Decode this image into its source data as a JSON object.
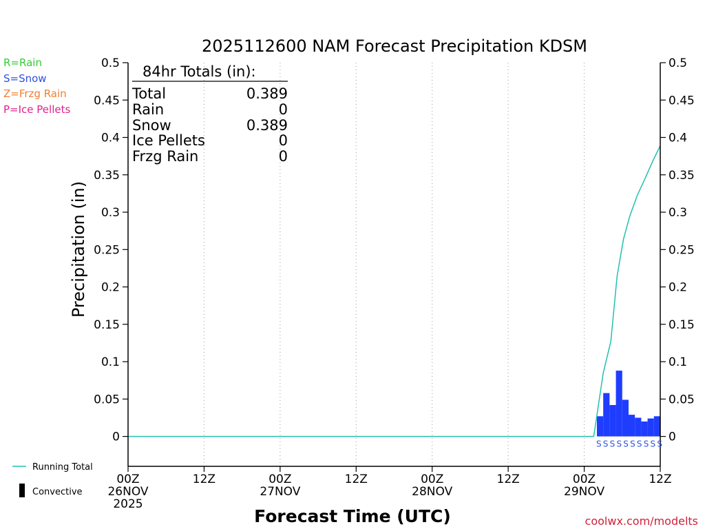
{
  "chart_data": {
    "type": "bar",
    "title": "2025112600 NAM Forecast Precipitation KDSM",
    "xlabel": "Forecast Time (UTC)",
    "ylabel": "Precipitation (in)",
    "x_unit": "forecast hour",
    "xlim": [
      0,
      84
    ],
    "ylim": [
      -0.04,
      0.5
    ],
    "yticks": [
      0,
      0.05,
      0.1,
      0.15,
      0.2,
      0.25,
      0.3,
      0.35,
      0.4,
      0.45,
      0.5
    ],
    "ytick_labels": [
      "0",
      "0.05",
      "0.1",
      "0.15",
      "0.2",
      "0.25",
      "0.3",
      "0.35",
      "0.4",
      "0.45",
      "0.5"
    ],
    "xticks": [
      0,
      12,
      24,
      36,
      48,
      60,
      72,
      84
    ],
    "xtick_labels": [
      {
        "line1": "00Z",
        "line2": "26NOV",
        "line3": "2025"
      },
      {
        "line1": "12Z",
        "line2": "",
        "line3": ""
      },
      {
        "line1": "00Z",
        "line2": "27NOV",
        "line3": ""
      },
      {
        "line1": "12Z",
        "line2": "",
        "line3": ""
      },
      {
        "line1": "00Z",
        "line2": "28NOV",
        "line3": ""
      },
      {
        "line1": "12Z",
        "line2": "",
        "line3": ""
      },
      {
        "line1": "00Z",
        "line2": "29NOV",
        "line3": ""
      },
      {
        "line1": "12Z",
        "line2": "",
        "line3": ""
      }
    ],
    "grid": "vertical dotted",
    "series": [
      {
        "name": "Snow",
        "type": "bar",
        "color": "#1f3dff",
        "bars": [
          {
            "x0": 74,
            "x1": 75,
            "value": 0.027
          },
          {
            "x0": 75,
            "x1": 76,
            "value": 0.058
          },
          {
            "x0": 76,
            "x1": 77,
            "value": 0.042
          },
          {
            "x0": 77,
            "x1": 78,
            "value": 0.088
          },
          {
            "x0": 78,
            "x1": 79,
            "value": 0.049
          },
          {
            "x0": 79,
            "x1": 80,
            "value": 0.029
          },
          {
            "x0": 80,
            "x1": 81,
            "value": 0.025
          },
          {
            "x0": 81,
            "x1": 82,
            "value": 0.02
          },
          {
            "x0": 82,
            "x1": 83,
            "value": 0.024
          },
          {
            "x0": 83,
            "x1": 84,
            "value": 0.027
          }
        ]
      },
      {
        "name": "Running Total",
        "type": "line",
        "color": "#20c0b0",
        "points": [
          [
            0,
            0
          ],
          [
            73.5,
            0
          ],
          [
            75,
            0.085
          ],
          [
            76.2,
            0.127
          ],
          [
            77.2,
            0.215
          ],
          [
            78.2,
            0.264
          ],
          [
            79.2,
            0.295
          ],
          [
            80.4,
            0.323
          ],
          [
            81.6,
            0.345
          ],
          [
            82.8,
            0.368
          ],
          [
            84,
            0.389
          ]
        ]
      }
    ],
    "precip_type_marks": {
      "text": "SSSSSSSSSS",
      "color": "#3050e0",
      "x_start": 74,
      "x_end": 84
    },
    "legend_types": [
      {
        "label": "R=Rain",
        "color": "#33cc33"
      },
      {
        "label": "S=Snow",
        "color": "#3050e0"
      },
      {
        "label": "Z=Frzg Rain",
        "color": "#f08030"
      },
      {
        "label": "P=Ice Pellets",
        "color": "#e0208a"
      }
    ],
    "legend_bottom": [
      {
        "label": "Running Total",
        "swatch": "line",
        "color": "#20c0b0"
      },
      {
        "label": "Convective",
        "swatch": "bar",
        "color": "#000000"
      }
    ],
    "totals": {
      "header": "84hr Totals (in):",
      "rows": [
        {
          "label": "Total",
          "value": "0.389"
        },
        {
          "label": "Rain",
          "value": "0"
        },
        {
          "label": "Snow",
          "value": "0.389"
        },
        {
          "label": "Ice Pellets",
          "value": "0"
        },
        {
          "label": "Frzg Rain",
          "value": "0"
        }
      ]
    },
    "footer": {
      "text": "coolwx.com/modelts",
      "color": "#d0203a"
    }
  }
}
